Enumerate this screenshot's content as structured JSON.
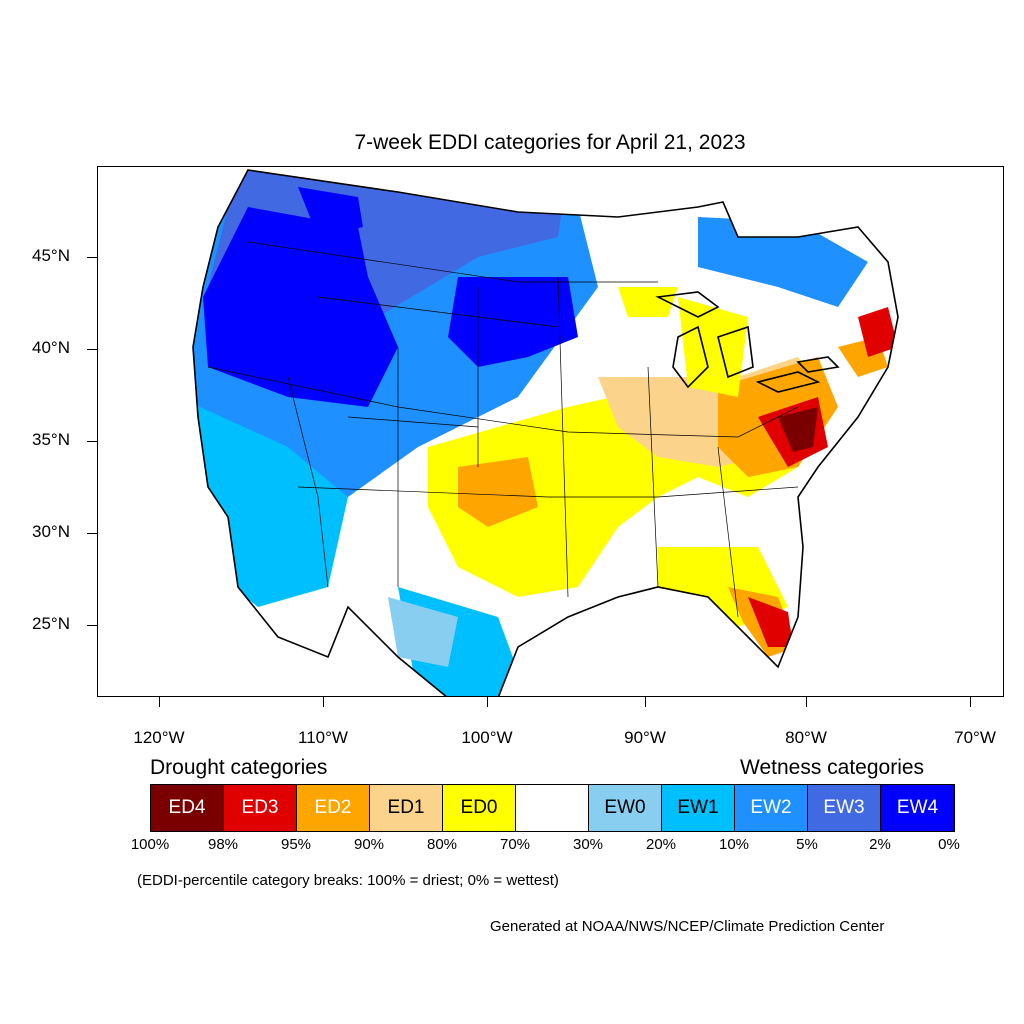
{
  "title": "7-week EDDI categories for April 21, 2023",
  "axes": {
    "y_labels": [
      "45°N",
      "40°N",
      "35°N",
      "30°N",
      "25°N"
    ],
    "x_labels": [
      "120°W",
      "110°W",
      "100°W",
      "90°W",
      "80°W",
      "70°W"
    ]
  },
  "legend": {
    "drought_heading": "Drought categories",
    "wetness_heading": "Wetness categories",
    "categories": [
      {
        "label": "ED4",
        "color": "#7a0000",
        "text_color": "#ffffff"
      },
      {
        "label": "ED3",
        "color": "#e00000",
        "text_color": "#ffffff"
      },
      {
        "label": "ED2",
        "color": "#ffa500",
        "text_color": "#ffffff"
      },
      {
        "label": "ED1",
        "color": "#fcd38a",
        "text_color": "#000000"
      },
      {
        "label": "ED0",
        "color": "#ffff00",
        "text_color": "#000000"
      },
      {
        "label": "",
        "color": "#ffffff",
        "text_color": "#000000"
      },
      {
        "label": "EW0",
        "color": "#87cef0",
        "text_color": "#000000"
      },
      {
        "label": "EW1",
        "color": "#00bfff",
        "text_color": "#000000"
      },
      {
        "label": "EW2",
        "color": "#1e90ff",
        "text_color": "#ffffff"
      },
      {
        "label": "EW3",
        "color": "#4169e1",
        "text_color": "#ffffff"
      },
      {
        "label": "EW4",
        "color": "#0000ff",
        "text_color": "#ffffff"
      }
    ],
    "breaks": [
      "100%",
      "98%",
      "95%",
      "90%",
      "80%",
      "70%",
      "30%",
      "20%",
      "10%",
      "5%",
      "2%",
      "0%"
    ]
  },
  "note": "(EDDI-percentile category breaks: 100% = driest; 0% = wettest)",
  "credit": "Generated at NOAA/NWS/NCEP/Climate Prediction Center"
}
